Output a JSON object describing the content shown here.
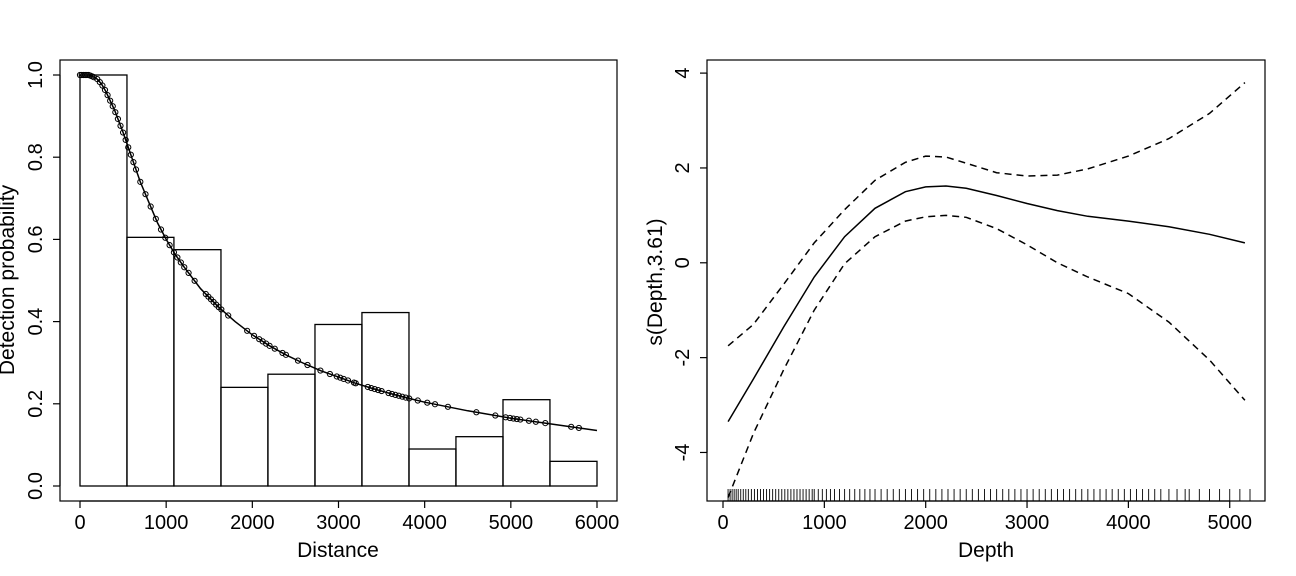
{
  "chart_data": [
    {
      "type": "bar",
      "xlabel": "Distance",
      "ylabel": "Detection probability",
      "xlim": [
        0,
        6000
      ],
      "ylim": [
        0,
        1.0
      ],
      "xticks": [
        "0",
        "1000",
        "2000",
        "3000",
        "4000",
        "5000",
        "6000"
      ],
      "yticks": [
        "0.0",
        "0.2",
        "0.4",
        "0.6",
        "0.8",
        "1.0"
      ],
      "bins": [
        {
          "from": 0,
          "to": 545,
          "value": 1.0
        },
        {
          "from": 545,
          "to": 1090,
          "value": 0.605
        },
        {
          "from": 1090,
          "to": 1636,
          "value": 0.575
        },
        {
          "from": 1636,
          "to": 2181,
          "value": 0.24
        },
        {
          "from": 2181,
          "to": 2727,
          "value": 0.272
        },
        {
          "from": 2727,
          "to": 3272,
          "value": 0.393
        },
        {
          "from": 3272,
          "to": 3818,
          "value": 0.422
        },
        {
          "from": 3818,
          "to": 4363,
          "value": 0.09
        },
        {
          "from": 4363,
          "to": 4909,
          "value": 0.12
        },
        {
          "from": 4909,
          "to": 5454,
          "value": 0.21
        },
        {
          "from": 5454,
          "to": 6000,
          "value": 0.06
        }
      ],
      "curve": {
        "x": [
          0,
          100,
          150,
          200,
          250,
          300,
          400,
          500,
          600,
          700,
          800,
          900,
          1000,
          1100,
          1200,
          1400,
          1600,
          1800,
          2000,
          2200,
          2400,
          2600,
          2800,
          3000,
          3200,
          3400,
          3600,
          3800,
          4000,
          4500,
          5000,
          5500,
          6000
        ],
        "y": [
          1.0,
          1.0,
          0.996,
          0.99,
          0.978,
          0.96,
          0.915,
          0.86,
          0.8,
          0.74,
          0.69,
          0.64,
          0.6,
          0.565,
          0.535,
          0.48,
          0.437,
          0.4,
          0.368,
          0.341,
          0.318,
          0.298,
          0.28,
          0.265,
          0.25,
          0.237,
          0.225,
          0.214,
          0.204,
          0.183,
          0.165,
          0.15,
          0.135
        ]
      },
      "points_x": [
        0,
        20,
        40,
        60,
        80,
        100,
        120,
        140,
        160,
        200,
        230,
        260,
        290,
        320,
        350,
        380,
        410,
        440,
        470,
        500,
        530,
        560,
        590,
        620,
        650,
        700,
        760,
        820,
        880,
        940,
        990,
        1040,
        1090,
        1130,
        1170,
        1210,
        1260,
        1330,
        1460,
        1490,
        1520,
        1550,
        1580,
        1610,
        1640,
        1720,
        1940,
        2020,
        2080,
        2120,
        2160,
        2200,
        2260,
        2350,
        2390,
        2530,
        2640,
        2790,
        2900,
        2980,
        3020,
        3060,
        3110,
        3180,
        3200,
        3340,
        3380,
        3420,
        3460,
        3500,
        3580,
        3620,
        3660,
        3700,
        3740,
        3780,
        3820,
        3920,
        4030,
        4120,
        4270,
        4600,
        4820,
        4940,
        4990,
        5030,
        5070,
        5110,
        5210,
        5290,
        5400,
        5700,
        5790
      ]
    },
    {
      "type": "line",
      "xlabel": "Depth",
      "ylabel": "s(Depth,3.61)",
      "xlim": [
        0,
        5200
      ],
      "ylim": [
        -5.15,
        4.15
      ],
      "xticks": [
        "0",
        "1000",
        "2000",
        "3000",
        "4000",
        "5000"
      ],
      "yticks": [
        "-4",
        "-2",
        "0",
        "2",
        "4"
      ],
      "series": [
        {
          "style": "solid",
          "x": [
            50,
            300,
            600,
            900,
            1200,
            1500,
            1800,
            2000,
            2200,
            2400,
            2700,
            3000,
            3300,
            3600,
            4000,
            4400,
            4800,
            5150
          ],
          "y": [
            -3.35,
            -2.45,
            -1.35,
            -0.3,
            0.55,
            1.15,
            1.5,
            1.6,
            1.62,
            1.57,
            1.42,
            1.25,
            1.1,
            0.98,
            0.88,
            0.76,
            0.6,
            0.42
          ]
        },
        {
          "style": "dashed",
          "x": [
            50,
            300,
            600,
            900,
            1200,
            1500,
            1800,
            2000,
            2200,
            2400,
            2700,
            3000,
            3300,
            3600,
            4000,
            4400,
            4800,
            5150
          ],
          "y": [
            -1.75,
            -1.3,
            -0.45,
            0.42,
            1.12,
            1.74,
            2.12,
            2.25,
            2.23,
            2.1,
            1.9,
            1.83,
            1.85,
            1.98,
            2.25,
            2.62,
            3.15,
            3.8
          ]
        },
        {
          "style": "dashed",
          "x": [
            50,
            300,
            600,
            900,
            1200,
            1500,
            1800,
            2000,
            2200,
            2400,
            2700,
            3000,
            3300,
            3600,
            4000,
            4400,
            4800,
            5150
          ],
          "y": [
            -4.95,
            -3.6,
            -2.25,
            -1.0,
            -0.02,
            0.55,
            0.88,
            0.97,
            1.0,
            0.96,
            0.72,
            0.38,
            0.0,
            -0.3,
            -0.65,
            -1.25,
            -2.05,
            -2.9
          ]
        }
      ],
      "rug_x": [
        50,
        70,
        90,
        110,
        130,
        150,
        175,
        200,
        225,
        250,
        280,
        310,
        340,
        370,
        400,
        430,
        460,
        490,
        520,
        550,
        580,
        610,
        640,
        670,
        700,
        730,
        760,
        790,
        820,
        850,
        880,
        900,
        940,
        980,
        1020,
        1060,
        1100,
        1150,
        1200,
        1250,
        1300,
        1350,
        1400,
        1450,
        1500,
        1560,
        1620,
        1680,
        1740,
        1800,
        1860,
        1920,
        1980,
        2040,
        2100,
        2160,
        2220,
        2280,
        2340,
        2400,
        2460,
        2520,
        2580,
        2640,
        2700,
        2760,
        2820,
        2880,
        2940,
        3000,
        3060,
        3120,
        3180,
        3240,
        3300,
        3360,
        3420,
        3480,
        3540,
        3600,
        3660,
        3720,
        3780,
        3840,
        3900,
        3960,
        4020,
        4080,
        4140,
        4200,
        4260,
        4320,
        4400,
        4480,
        4560,
        4600,
        4700,
        4800,
        4900,
        5000,
        5100,
        5200
      ]
    }
  ]
}
